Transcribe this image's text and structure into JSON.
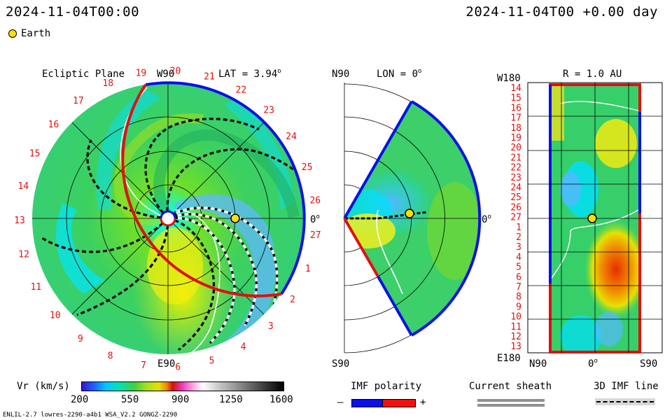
{
  "header": {
    "left_timestamp": "2024-11-04T00:00",
    "right_timestamp": "2024-11-04T00 +0.00 day"
  },
  "legend": {
    "earth_label": "Earth",
    "earth_color": "#ffe000"
  },
  "ecliptic": {
    "title": "Ecliptic Plane",
    "lat_label": "LAT = 3.94",
    "degree_mark": "o",
    "top_label": "W90",
    "bottom_label": "E90",
    "right_label": "0",
    "rim_numbers": [
      "19",
      "20",
      "21",
      "22",
      "23",
      "24",
      "25",
      "26",
      "27",
      "1",
      "2",
      "3",
      "4",
      "5",
      "6",
      "7",
      "8",
      "9",
      "10",
      "11",
      "12",
      "13",
      "14",
      "15",
      "16",
      "17",
      "18"
    ]
  },
  "meridional": {
    "top_label": "N90",
    "lon_label": "LON = 0",
    "degree_mark": "o",
    "bottom_label": "S90",
    "right_label": "0"
  },
  "map": {
    "top_left_label": "W180",
    "title": "R = 1.0 AU",
    "bottom_left_label": "E180",
    "bottom_left_axis": "N90",
    "bottom_center_axis": "0",
    "bottom_right_axis": "S90",
    "rotation_numbers": [
      "14",
      "15",
      "16",
      "17",
      "18",
      "19",
      "20",
      "21",
      "22",
      "23",
      "24",
      "25",
      "26",
      "27",
      "1",
      "2",
      "3",
      "4",
      "5",
      "6",
      "7",
      "8",
      "9",
      "10",
      "11",
      "12",
      "13"
    ]
  },
  "colorbar": {
    "label": "Vr (km/s)",
    "ticks": [
      "200",
      "550",
      "900",
      "1250",
      "1600"
    ]
  },
  "imf_legend": {
    "title": "IMF polarity",
    "minus": "–",
    "plus": "+",
    "negative_color": "#0a10e8",
    "positive_color": "#f01010"
  },
  "sheath_legend": {
    "title": "Current sheath"
  },
  "line_legend": {
    "title": "3D IMF line"
  },
  "footer": {
    "model_info": "ENLIL-2.7 lowres-2290-a4b1 WSA_V2.2 GONGZ-2290"
  }
}
